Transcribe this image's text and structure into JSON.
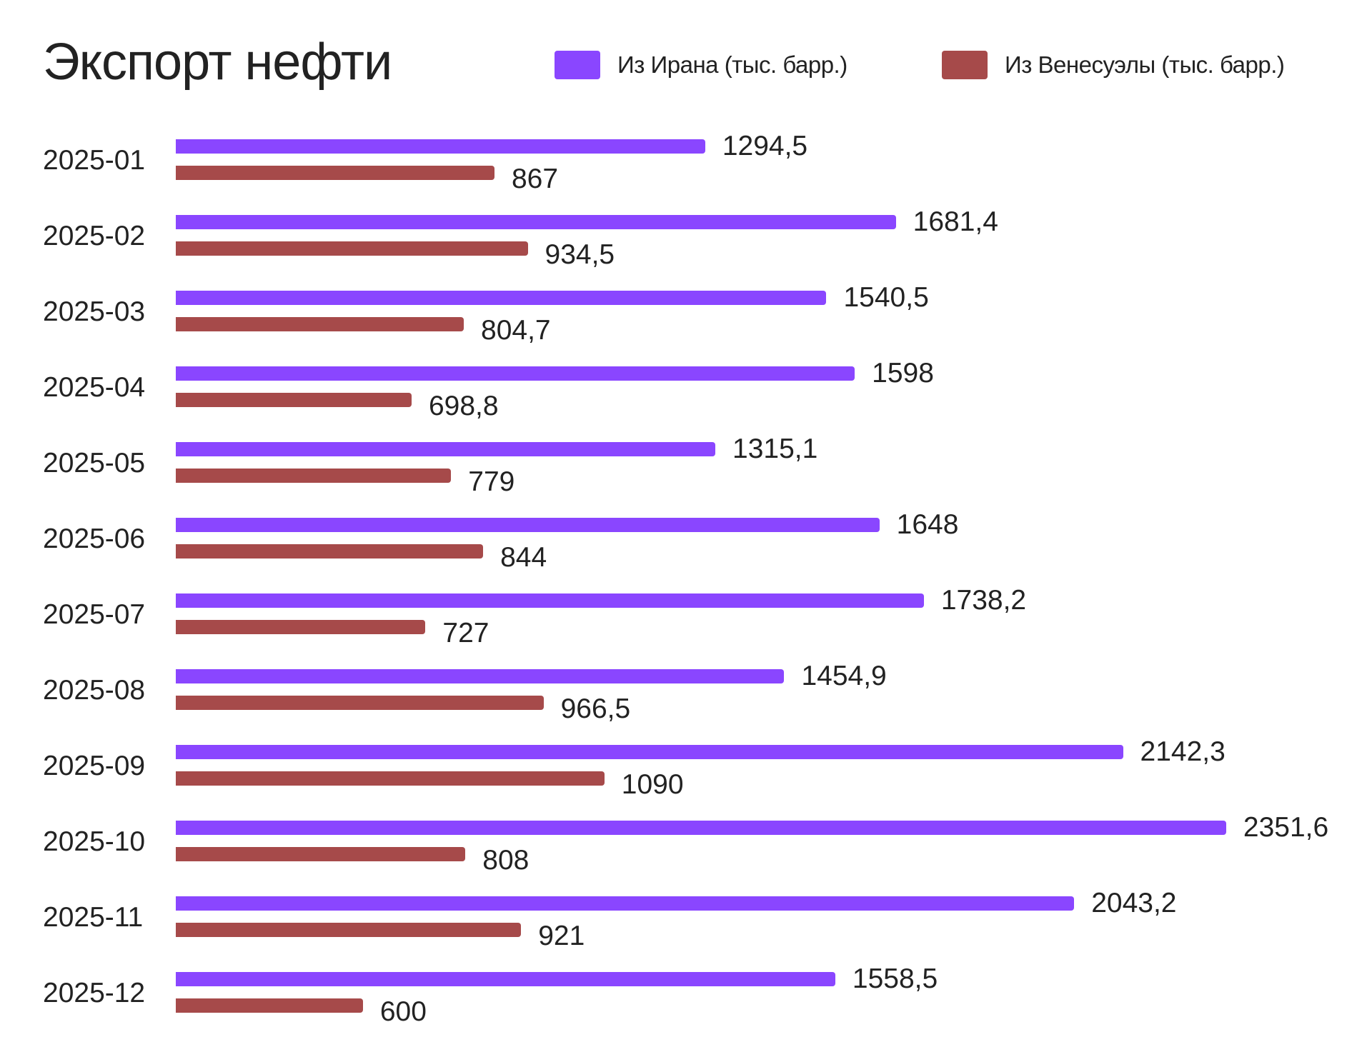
{
  "title": "Экспорт нефти",
  "legend": [
    {
      "label": "Из Ирана (тыс. барр.)",
      "color": "#8A46FF"
    },
    {
      "label": "Из Венесуэлы (тыс. барр.)",
      "color": "#A64A4A"
    }
  ],
  "rows": [
    {
      "category": "2025-01",
      "iran": "1294,5",
      "ven": "867"
    },
    {
      "category": "2025-02",
      "iran": "1681,4",
      "ven": "934,5"
    },
    {
      "category": "2025-03",
      "iran": "1540,5",
      "ven": "804,7"
    },
    {
      "category": "2025-04",
      "iran": "1598",
      "ven": "698,8"
    },
    {
      "category": "2025-05",
      "iran": "1315,1",
      "ven": "779"
    },
    {
      "category": "2025-06",
      "iran": "1648",
      "ven": "844"
    },
    {
      "category": "2025-07",
      "iran": "1738,2",
      "ven": "727"
    },
    {
      "category": "2025-08",
      "iran": "1454,9",
      "ven": "966,5"
    },
    {
      "category": "2025-09",
      "iran": "2142,3",
      "ven": "1090"
    },
    {
      "category": "2025-10",
      "iran": "2351,6",
      "ven": "808"
    },
    {
      "category": "2025-11",
      "iran": "2043,2",
      "ven": "921"
    },
    {
      "category": "2025-12",
      "iran": "1558,5",
      "ven": "600"
    }
  ],
  "chart_data": {
    "type": "bar",
    "orientation": "horizontal",
    "title": "Экспорт нефти",
    "xlabel": "",
    "ylabel": "",
    "categories": [
      "2025-01",
      "2025-02",
      "2025-03",
      "2025-04",
      "2025-05",
      "2025-06",
      "2025-07",
      "2025-08",
      "2025-09",
      "2025-10",
      "2025-11",
      "2025-12"
    ],
    "series": [
      {
        "name": "Из Ирана (тыс. барр.)",
        "color": "#8A46FF",
        "values": [
          1294.5,
          1681.4,
          1540.5,
          1598,
          1315.1,
          1648,
          1738.2,
          1454.9,
          2142.3,
          2351.6,
          2043.2,
          1558.5
        ]
      },
      {
        "name": "Из Венесуэлы (тыс. барр.)",
        "color": "#A64A4A",
        "values": [
          867,
          934.5,
          804.7,
          698.8,
          779,
          844,
          727,
          966.5,
          1090,
          808,
          921,
          600
        ]
      }
    ],
    "data_labels": true,
    "grid": false,
    "legend_position": "top-right"
  }
}
